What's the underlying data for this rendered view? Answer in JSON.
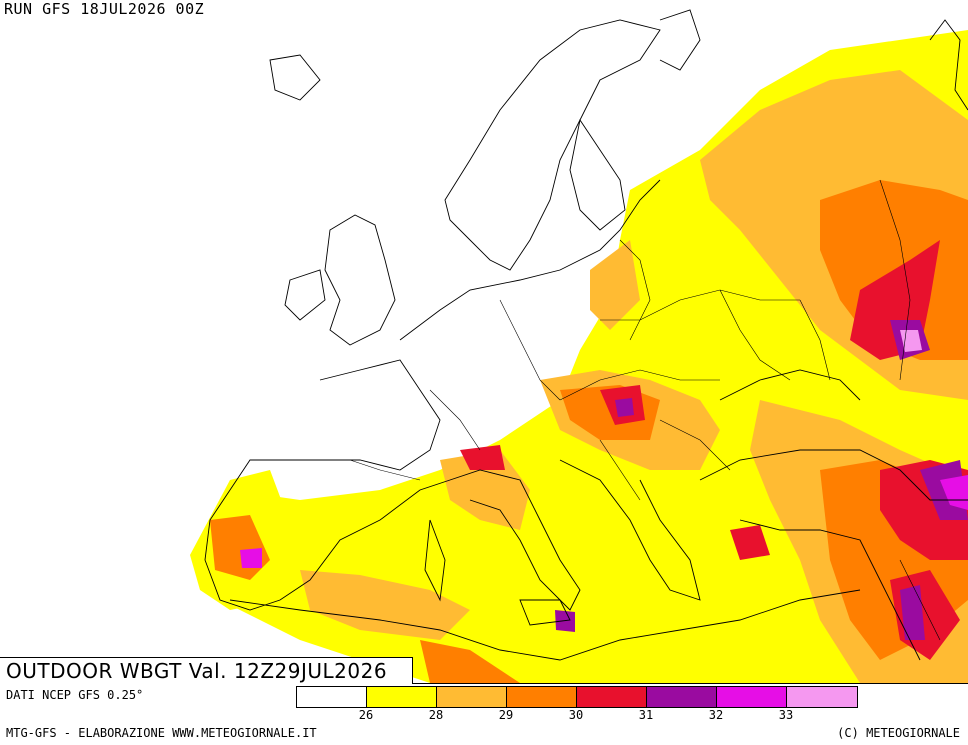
{
  "run_label": "RUN GFS 18JUL2026 00Z",
  "map_title": "OUTDOOR WBGT Val. 12Z29JUL2026",
  "data_source": "DATI NCEP GFS 0.25°",
  "credit_left": "MTG-GFS - ELABORAZIONE WWW.METEOGIORNALE.IT",
  "credit_right": "(C) METEOGIORNALE",
  "legend": {
    "colors": [
      "#ffffff",
      "#ffff00",
      "#ffbb33",
      "#ff7f00",
      "#e8112d",
      "#9a0ba0",
      "#e60ee6",
      "#f598f0"
    ],
    "ticks": [
      "26",
      "28",
      "29",
      "30",
      "31",
      "32",
      "33"
    ]
  }
}
